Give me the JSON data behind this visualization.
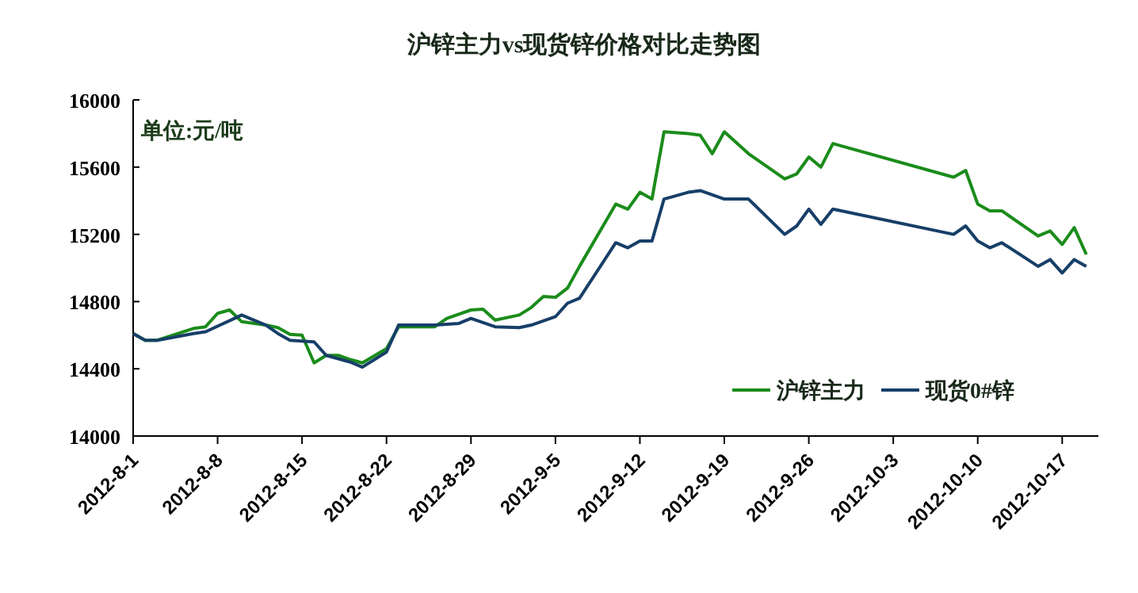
{
  "chart_data": {
    "type": "line",
    "title": "沪锌主力vs现货锌价格对比走势图",
    "annotations": [
      "单位:元/吨"
    ],
    "xlim": [
      "2012-08-01",
      "2012-10-20"
    ],
    "xticks": [
      {
        "value": "2012-08-01",
        "label": "2012-8-1"
      },
      {
        "value": "2012-08-08",
        "label": "2012-8-8"
      },
      {
        "value": "2012-08-15",
        "label": "2012-8-15"
      },
      {
        "value": "2012-08-22",
        "label": "2012-8-22"
      },
      {
        "value": "2012-08-29",
        "label": "2012-8-29"
      },
      {
        "value": "2012-09-05",
        "label": "2012-9-5"
      },
      {
        "value": "2012-09-12",
        "label": "2012-9-12"
      },
      {
        "value": "2012-09-19",
        "label": "2012-9-19"
      },
      {
        "value": "2012-09-26",
        "label": "2012-9-26"
      },
      {
        "value": "2012-10-03",
        "label": "2012-10-3"
      },
      {
        "value": "2012-10-10",
        "label": "2012-10-10"
      },
      {
        "value": "2012-10-17",
        "label": "2012-10-17"
      }
    ],
    "ylim": [
      14000,
      16000
    ],
    "yticks": [
      14000,
      14400,
      14800,
      15200,
      15600,
      16000
    ],
    "grid": false,
    "legend": "bottom right",
    "marker": "none",
    "line_style": "solid",
    "series": [
      {
        "name": "沪锌主力",
        "color": "#1b8c1b",
        "x": [
          "2012-08-01",
          "2012-08-02",
          "2012-08-03",
          "2012-08-06",
          "2012-08-07",
          "2012-08-08",
          "2012-08-09",
          "2012-08-10",
          "2012-08-12",
          "2012-08-13",
          "2012-08-14",
          "2012-08-15",
          "2012-08-16",
          "2012-08-17",
          "2012-08-18",
          "2012-08-19",
          "2012-08-20",
          "2012-08-22",
          "2012-08-23",
          "2012-08-26",
          "2012-08-27",
          "2012-08-29",
          "2012-08-30",
          "2012-08-31",
          "2012-09-02",
          "2012-09-03",
          "2012-09-04",
          "2012-09-05",
          "2012-09-06",
          "2012-09-07",
          "2012-09-10",
          "2012-09-11",
          "2012-09-12",
          "2012-09-13",
          "2012-09-14",
          "2012-09-16",
          "2012-09-17",
          "2012-09-18",
          "2012-09-19",
          "2012-09-21",
          "2012-09-24",
          "2012-09-25",
          "2012-09-26",
          "2012-09-27",
          "2012-09-28",
          "2012-10-08",
          "2012-10-09",
          "2012-10-10",
          "2012-10-11",
          "2012-10-12",
          "2012-10-15",
          "2012-10-16",
          "2012-10-17",
          "2012-10-18",
          "2012-10-19"
        ],
        "values": [
          14610,
          14570,
          14570,
          14640,
          14650,
          14730,
          14750,
          14680,
          14660,
          14645,
          14605,
          14600,
          14435,
          14480,
          14480,
          14455,
          14435,
          14520,
          14650,
          14650,
          14700,
          14750,
          14755,
          14690,
          14720,
          14765,
          14830,
          14825,
          14880,
          15010,
          15380,
          15350,
          15450,
          15410,
          15810,
          15800,
          15790,
          15680,
          15810,
          15680,
          15530,
          15560,
          15660,
          15600,
          15740,
          15540,
          15580,
          15380,
          15340,
          15340,
          15190,
          15220,
          15140,
          15240,
          15080
        ]
      },
      {
        "name": "现货0#锌",
        "color": "#173f68",
        "x": [
          "2012-08-01",
          "2012-08-02",
          "2012-08-03",
          "2012-08-06",
          "2012-08-07",
          "2012-08-10",
          "2012-08-12",
          "2012-08-13",
          "2012-08-14",
          "2012-08-16",
          "2012-08-17",
          "2012-08-19",
          "2012-08-20",
          "2012-08-22",
          "2012-08-23",
          "2012-08-26",
          "2012-08-28",
          "2012-08-29",
          "2012-08-31",
          "2012-09-02",
          "2012-09-03",
          "2012-09-05",
          "2012-09-06",
          "2012-09-07",
          "2012-09-10",
          "2012-09-11",
          "2012-09-12",
          "2012-09-13",
          "2012-09-14",
          "2012-09-16",
          "2012-09-17",
          "2012-09-19",
          "2012-09-21",
          "2012-09-24",
          "2012-09-25",
          "2012-09-26",
          "2012-09-27",
          "2012-09-28",
          "2012-10-08",
          "2012-10-09",
          "2012-10-10",
          "2012-10-11",
          "2012-10-12",
          "2012-10-15",
          "2012-10-16",
          "2012-10-17",
          "2012-10-18",
          "2012-10-19"
        ],
        "values": [
          14610,
          14570,
          14570,
          14610,
          14620,
          14720,
          14660,
          14610,
          14570,
          14560,
          14480,
          14440,
          14410,
          14500,
          14660,
          14660,
          14670,
          14700,
          14650,
          14645,
          14660,
          14710,
          14790,
          14820,
          15150,
          15120,
          15160,
          15160,
          15410,
          15450,
          15460,
          15410,
          15410,
          15200,
          15250,
          15350,
          15260,
          15350,
          15200,
          15250,
          15160,
          15120,
          15150,
          15010,
          15050,
          14970,
          15050,
          15010
        ]
      }
    ]
  }
}
